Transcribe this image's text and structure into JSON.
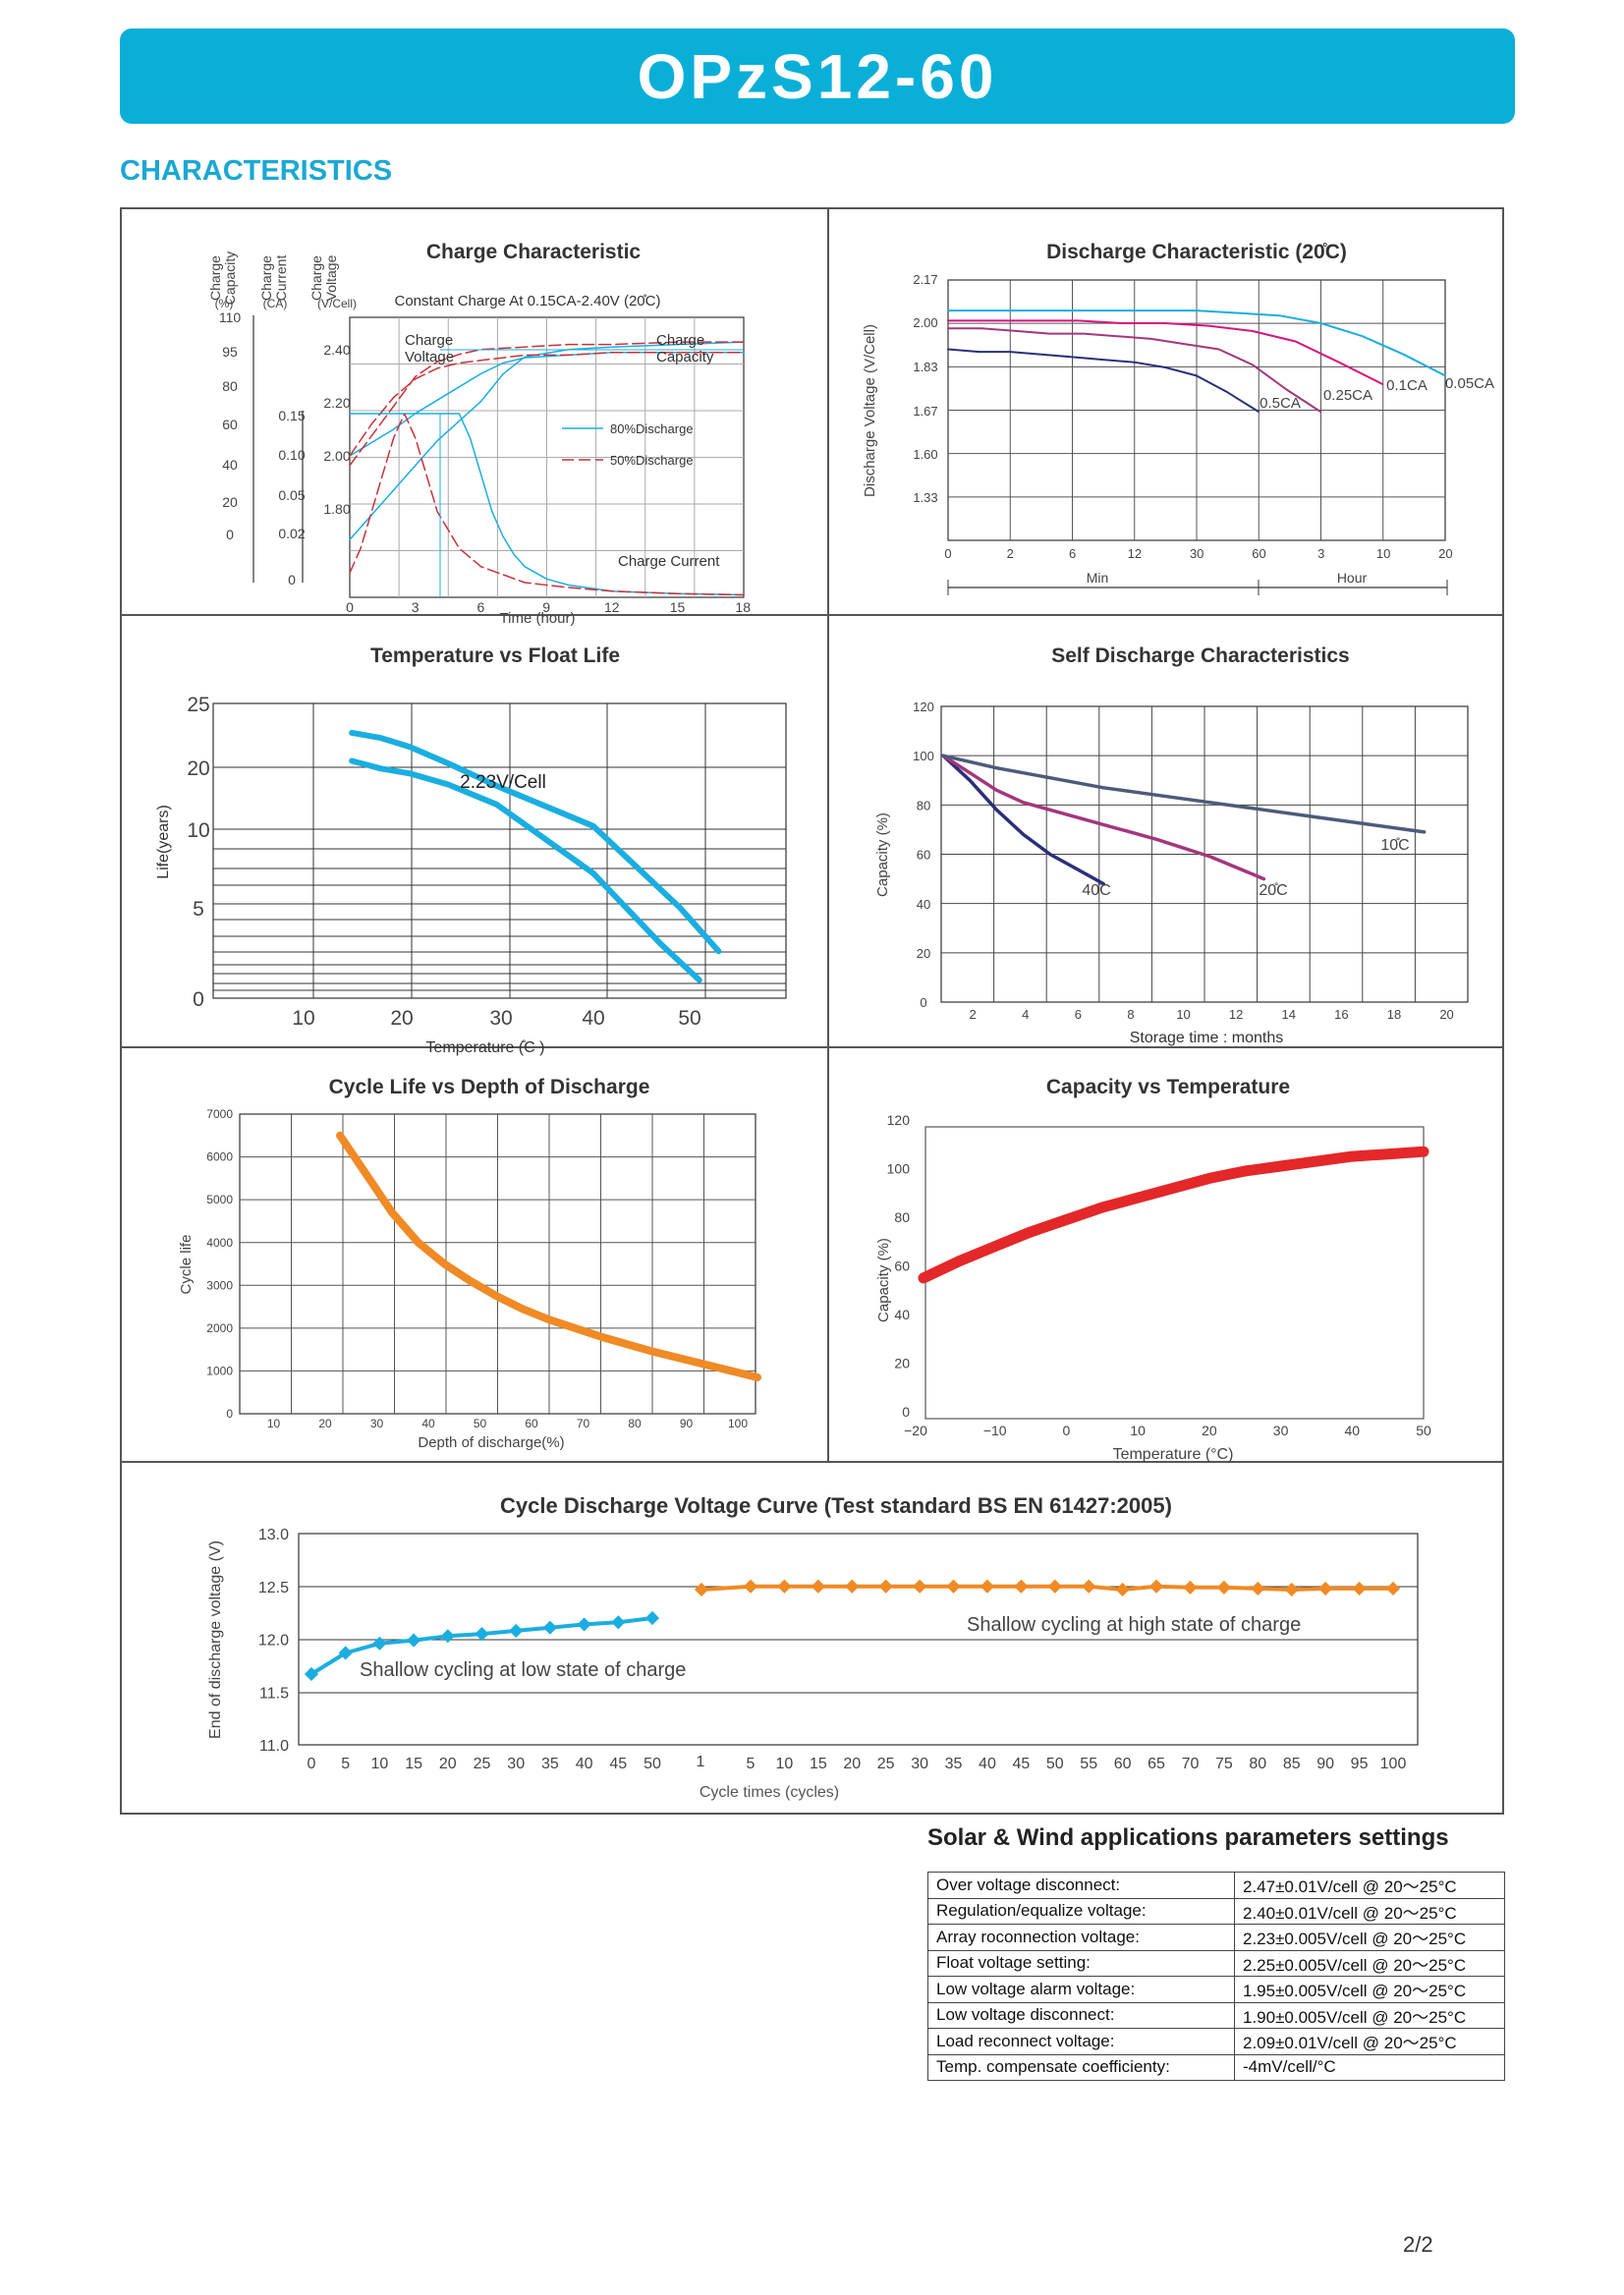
{
  "header": {
    "title": "OPzS12-60",
    "section": "CHARACTERISTICS"
  },
  "colors": {
    "banner": "#0aafd8",
    "section": "#1aa8d4",
    "blue": "#1aaee0",
    "navy": "#2b2f7a",
    "magenta": "#a4367d",
    "pink": "#d4147f",
    "red_dash": "#c8313a",
    "orange": "#f08a24",
    "red": "#e42729",
    "slate": "#4c5b7a"
  },
  "chart_data": [
    {
      "type": "line",
      "title": "Charge Characteristic",
      "subtitle": "Constant Charge At 0.15CA-2.40V  (20̊C)",
      "xlabel": "Time (hour)",
      "x_ticks": [
        "0",
        "3",
        "6",
        "9",
        "12",
        "15",
        "18"
      ],
      "y_axes": [
        {
          "label": "Charge Capacity",
          "unit": "(%)",
          "ticks": [
            "110",
            "95",
            "80",
            "60",
            "40",
            "20",
            "0"
          ]
        },
        {
          "label": "Charge Current",
          "unit": "(CA)",
          "ticks": [
            "0.15",
            "0.10",
            "0.05",
            "0.02",
            "0"
          ]
        },
        {
          "label": "Charge Voltage",
          "unit": "(V/Cell)",
          "ticks": [
            "2.40",
            "2.20",
            "2.00",
            "1.80"
          ]
        }
      ],
      "annotations": [
        "Charge Voltage",
        "Charge Capacity",
        "Charge Current"
      ],
      "legend": [
        "80%Discharge",
        "50%Discharge"
      ],
      "series": [
        {
          "name": "80%Discharge",
          "kind": "voltage",
          "x": [
            0,
            1,
            2,
            3,
            4,
            5,
            6,
            7,
            8,
            10,
            12,
            15,
            18
          ],
          "y": [
            2.0,
            2.05,
            2.1,
            2.16,
            2.21,
            2.26,
            2.31,
            2.35,
            2.37,
            2.38,
            2.39,
            2.39,
            2.39
          ]
        },
        {
          "name": "80%Discharge",
          "kind": "capacity",
          "x": [
            0,
            1,
            2,
            3,
            4,
            5,
            6,
            7,
            8,
            10,
            12,
            15,
            18
          ],
          "y": [
            20,
            30,
            40,
            50,
            60,
            68,
            76,
            87,
            94,
            97,
            98,
            99,
            100
          ]
        },
        {
          "name": "80%Discharge",
          "kind": "current",
          "x": [
            0,
            5,
            5.5,
            6,
            6.5,
            7,
            7.5,
            8,
            9,
            10,
            12,
            15,
            18
          ],
          "y": [
            0.15,
            0.15,
            0.13,
            0.1,
            0.07,
            0.05,
            0.035,
            0.025,
            0.015,
            0.01,
            0.005,
            0.003,
            0.002
          ]
        },
        {
          "name": "50%Discharge",
          "kind": "voltage",
          "x": [
            0,
            1,
            2,
            3,
            4,
            5,
            6,
            8,
            10,
            12,
            15,
            18
          ],
          "y": [
            2.0,
            2.12,
            2.22,
            2.29,
            2.33,
            2.35,
            2.36,
            2.38,
            2.38,
            2.39,
            2.39,
            2.39
          ]
        },
        {
          "name": "50%Discharge",
          "kind": "capacity",
          "x": [
            0,
            0.5,
            1,
            1.5,
            2,
            2.5,
            3,
            4,
            5,
            6,
            8,
            10,
            12,
            15,
            18
          ],
          "y": [
            50,
            56,
            62,
            68,
            74,
            80,
            86,
            92,
            95,
            97,
            98,
            99,
            99,
            100,
            100
          ]
        },
        {
          "name": "50%Discharge",
          "kind": "current",
          "x": [
            0,
            0.5,
            1,
            1.5,
            2,
            2.5,
            3,
            3.5,
            4,
            5,
            6,
            8,
            10,
            12,
            15,
            18
          ],
          "y": [
            0.02,
            0.04,
            0.07,
            0.1,
            0.13,
            0.15,
            0.13,
            0.1,
            0.07,
            0.04,
            0.025,
            0.012,
            0.008,
            0.005,
            0.003,
            0.002
          ]
        }
      ]
    },
    {
      "type": "line",
      "title": "Discharge Characteristic (20̊C)",
      "ylabel": "Discharge Voltage (V/Cell)",
      "y_ticks": [
        "2.17",
        "2.00",
        "1.83",
        "1.67",
        "1.60",
        "1.33"
      ],
      "x_ticks": [
        "0",
        "2",
        "6",
        "12",
        "30",
        "60",
        "3",
        "10",
        "20"
      ],
      "x_units": [
        "Min",
        "Hour"
      ],
      "series": [
        {
          "name": "0.5CA",
          "values": [
            1.9,
            1.89,
            1.89,
            1.88,
            1.87,
            1.86,
            1.85,
            1.83,
            1.8,
            1.74,
            1.67
          ]
        },
        {
          "name": "0.25CA",
          "values": [
            1.98,
            1.98,
            1.97,
            1.96,
            1.96,
            1.95,
            1.94,
            1.92,
            1.9,
            1.84,
            1.75,
            1.67
          ]
        },
        {
          "name": "0.1CA",
          "values": [
            2.01,
            2.01,
            2.01,
            2.01,
            2.0,
            2.0,
            1.99,
            1.97,
            1.93,
            1.85,
            1.77
          ]
        },
        {
          "name": "0.05CA",
          "values": [
            2.05,
            2.05,
            2.05,
            2.05,
            2.05,
            2.05,
            2.05,
            2.04,
            2.03,
            2.0,
            1.95,
            1.88,
            1.8
          ]
        }
      ]
    },
    {
      "type": "line",
      "title": "Temperature vs Float Life",
      "xlabel": "Temperature (̊C )",
      "ylabel": "Life(years)",
      "y_ticks": [
        "25",
        "20",
        "10",
        "5",
        "0"
      ],
      "x_ticks": [
        "10",
        "20",
        "30",
        "40",
        "50"
      ],
      "annotation": "2.23V/Cell",
      "series": [
        {
          "name": "upper",
          "x": [
            15,
            18,
            21,
            25,
            30,
            40,
            49,
            53
          ],
          "y": [
            22.7,
            22.3,
            21.6,
            20.3,
            17.0,
            10.5,
            5.0,
            2.6
          ]
        },
        {
          "name": "lower",
          "x": [
            15,
            18,
            21,
            25,
            30,
            40,
            47,
            51
          ],
          "y": [
            20.5,
            19.8,
            19.0,
            17.2,
            14.0,
            7.2,
            3.0,
            1.0
          ]
        }
      ]
    },
    {
      "type": "line",
      "title": "Self Discharge Characteristics",
      "xlabel": "Storage time : months",
      "ylabel": "Capacity (%)",
      "x_ticks": [
        "2",
        "4",
        "6",
        "8",
        "10",
        "12",
        "14",
        "16",
        "18",
        "20"
      ],
      "y_ticks": [
        "120",
        "100",
        "80",
        "60",
        "40",
        "20",
        "0"
      ],
      "series": [
        {
          "name": "40̊C",
          "x": [
            0,
            1,
            2,
            3,
            4,
            5,
            6
          ],
          "y": [
            100,
            90,
            78,
            68,
            60,
            54,
            48
          ]
        },
        {
          "name": "20̊C",
          "x": [
            0,
            1,
            2,
            3,
            4,
            6,
            8,
            10,
            12
          ],
          "y": [
            100,
            93,
            86,
            81,
            78,
            72,
            66,
            59,
            50
          ]
        },
        {
          "name": "10̊C",
          "x": [
            0,
            2,
            4,
            6,
            8,
            10,
            12,
            14,
            16,
            18
          ],
          "y": [
            100,
            95,
            91,
            87,
            84,
            81,
            78,
            75,
            72,
            69
          ]
        }
      ]
    },
    {
      "type": "line",
      "title": "Cycle Life vs Depth of Discharge",
      "xlabel": "Depth of discharge(%)",
      "ylabel": "Cycle life",
      "x_ticks": [
        "10",
        "20",
        "30",
        "40",
        "50",
        "60",
        "70",
        "80",
        "90",
        "100"
      ],
      "y_ticks": [
        "7000",
        "6000",
        "5000",
        "4000",
        "3000",
        "2000",
        "1000",
        "0"
      ],
      "series": [
        {
          "name": "cycle life",
          "x": [
            20,
            25,
            30,
            35,
            40,
            45,
            50,
            55,
            60,
            70,
            80,
            90,
            100
          ],
          "y": [
            6500,
            5600,
            4700,
            4000,
            3500,
            3100,
            2750,
            2450,
            2200,
            1800,
            1450,
            1150,
            850
          ]
        }
      ]
    },
    {
      "type": "line",
      "title": "Capacity vs Temperature",
      "xlabel": "Temperature (°C)",
      "ylabel": "Capacity (%)",
      "x_ticks": [
        "−20",
        "−10",
        "0",
        "10",
        "20",
        "30",
        "40",
        "50"
      ],
      "y_ticks": [
        "120",
        "100",
        "80",
        "60",
        "40",
        "20",
        "0"
      ],
      "series": [
        {
          "name": "capacity",
          "x": [
            -20,
            -15,
            -10,
            -5,
            0,
            5,
            10,
            15,
            20,
            25,
            30,
            35,
            40,
            45,
            50
          ],
          "y": [
            55,
            62,
            68,
            74,
            79,
            84,
            88,
            92,
            96,
            99,
            101,
            103,
            105,
            106,
            107
          ]
        }
      ]
    },
    {
      "type": "line",
      "title": "Cycle Discharge Voltage Curve  (Test standard BS EN 61427:2005)",
      "xlabel": "Cycle times    (cycles)",
      "ylabel": "End of discharge voltage (V)",
      "y_ticks": [
        "13.0",
        "12.5",
        "12.0",
        "11.5",
        "11.0"
      ],
      "x_ticks_left": [
        "0",
        "5",
        "10",
        "15",
        "20",
        "25",
        "30",
        "35",
        "40",
        "45",
        "50"
      ],
      "x_ticks_right": [
        "1",
        "5",
        "10",
        "15",
        "20",
        "25",
        "30",
        "35",
        "40",
        "45",
        "50",
        "55",
        "60",
        "65",
        "70",
        "75",
        "80",
        "85",
        "90",
        "95",
        "100"
      ],
      "annotations": [
        "Shallow cycling at low state of charge",
        "Shallow cycling at high state of charge"
      ],
      "series": [
        {
          "name": "Shallow cycling at low state of charge",
          "x": [
            0,
            5,
            10,
            15,
            20,
            25,
            30,
            35,
            40,
            45,
            50
          ],
          "y": [
            11.67,
            11.87,
            11.96,
            11.99,
            12.03,
            12.05,
            12.08,
            12.11,
            12.14,
            12.16,
            12.2
          ]
        },
        {
          "name": "Shallow cycling at high state of charge",
          "x": [
            1,
            5,
            10,
            15,
            20,
            25,
            30,
            35,
            40,
            45,
            50,
            55,
            60,
            65,
            70,
            75,
            80,
            85,
            90,
            95,
            100
          ],
          "y": [
            12.47,
            12.5,
            12.5,
            12.5,
            12.5,
            12.5,
            12.5,
            12.5,
            12.5,
            12.5,
            12.5,
            12.5,
            12.47,
            12.5,
            12.49,
            12.49,
            12.48,
            12.47,
            12.48,
            12.48,
            12.48
          ]
        }
      ]
    }
  ],
  "params": {
    "title": "Solar & Wind applications parameters settings",
    "rows": [
      {
        "k": "Over voltage disconnect:",
        "v": "2.47±0.01V/cell   @ 20～25°C"
      },
      {
        "k": "Regulation/equalize voltage:",
        "v": "2.40±0.01V/cell   @ 20～25°C"
      },
      {
        "k": "Array roconnection voltage:",
        "v": "2.23±0.005V/cell @ 20～25°C"
      },
      {
        "k": "Float voltage setting:",
        "v": "2.25±0.005V/cell @ 20～25°C"
      },
      {
        "k": "Low voltage alarm voltage:",
        "v": "1.95±0.005V/cell @ 20～25°C"
      },
      {
        "k": "Low voltage disconnect:",
        "v": "1.90±0.005V/cell @ 20～25°C"
      },
      {
        "k": "Load reconnect voltage:",
        "v": "2.09±0.01V/cell   @ 20～25°C"
      },
      {
        "k": "Temp. compensate coefficienty:",
        "v": "-4mV/cell/°C"
      }
    ]
  },
  "page": "2/2"
}
